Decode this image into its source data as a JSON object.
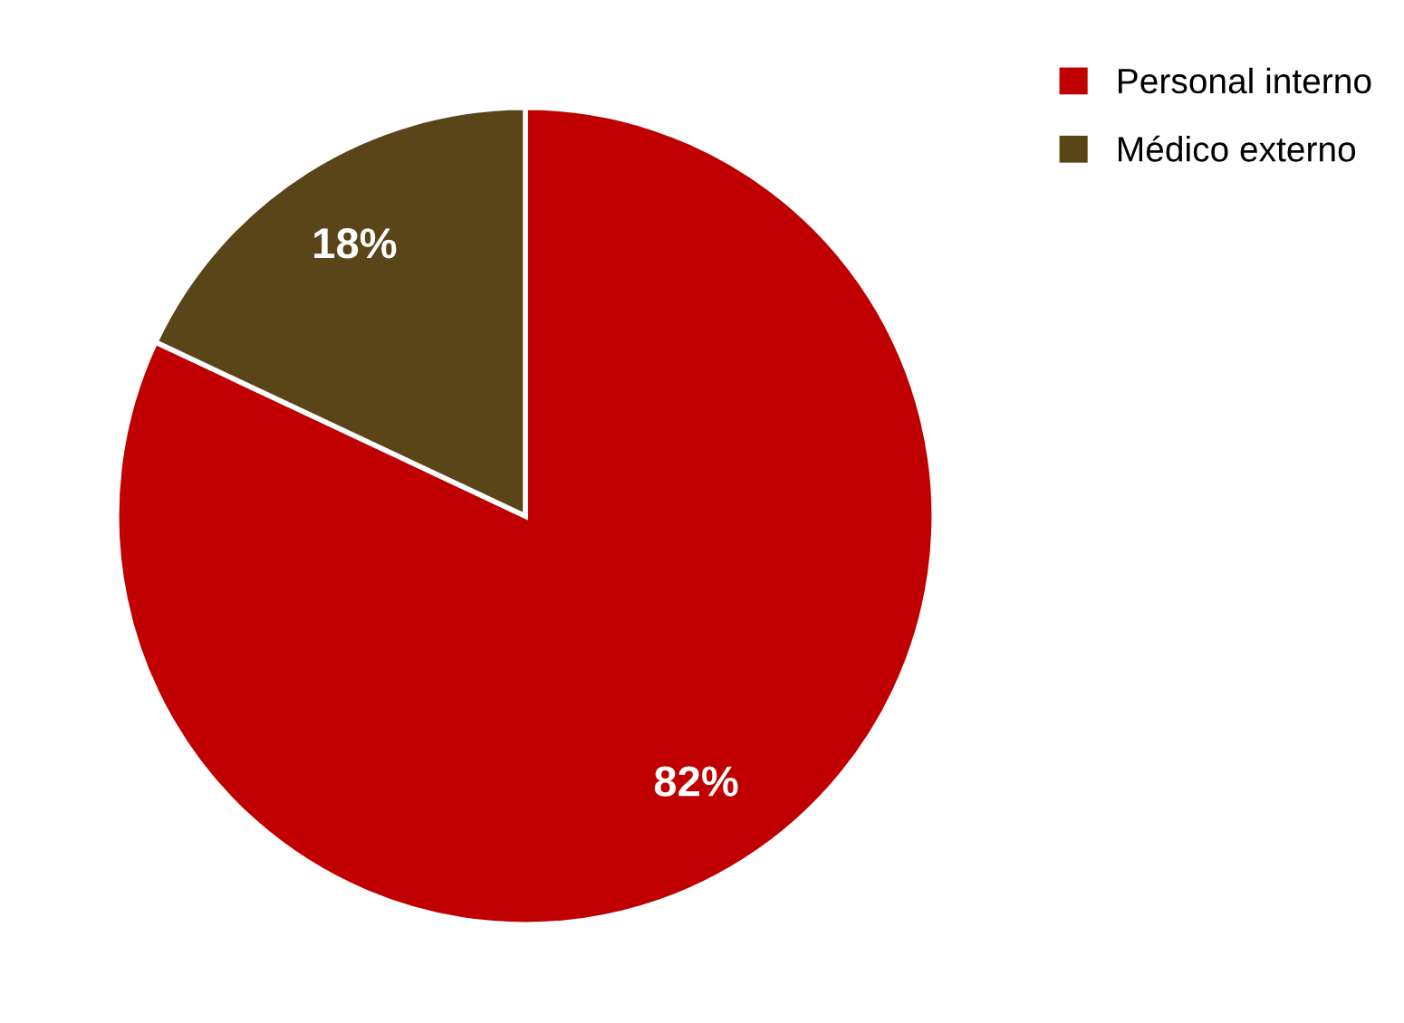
{
  "chart_data": {
    "type": "pie",
    "categories": [
      "Personal interno",
      "Médico externo"
    ],
    "values": [
      82,
      18
    ],
    "colors": [
      "#c00000",
      "#5a4519"
    ],
    "value_labels": [
      "82%",
      "18%"
    ],
    "legend": "top right"
  }
}
